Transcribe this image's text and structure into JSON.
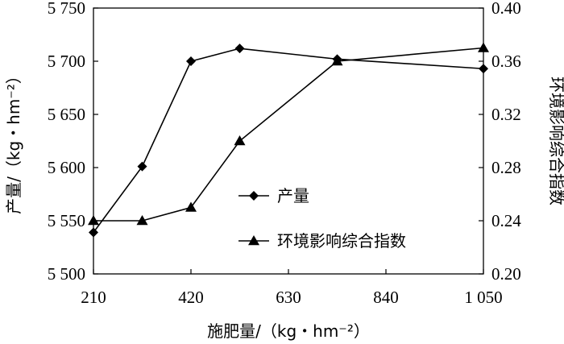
{
  "chart_data": {
    "type": "line",
    "x": [
      210,
      315,
      420,
      525,
      735,
      1050
    ],
    "xlim": [
      210,
      1050
    ],
    "x_ticks": [
      210,
      420,
      630,
      840,
      1050
    ],
    "x_tick_labels": [
      "210",
      "420",
      "630",
      "840",
      "1 050"
    ],
    "xlabel": "施肥量/（kg・hm⁻²）",
    "ylabel": "产量/（kg・hm⁻²）",
    "ylim": [
      5500,
      5750
    ],
    "y_ticks": [
      5500,
      5550,
      5600,
      5650,
      5700,
      5750
    ],
    "y_tick_labels": [
      "5 500",
      "5 550",
      "5 600",
      "5 650",
      "5 700",
      "5 750"
    ],
    "y2label": "环境影响综合指数",
    "y2lim": [
      0.2,
      0.4
    ],
    "y2_ticks": [
      0.2,
      0.24,
      0.28,
      0.32,
      0.36,
      0.4
    ],
    "y2_tick_labels": [
      "0.20",
      "0.24",
      "0.28",
      "0.32",
      "0.36",
      "0.40"
    ],
    "grid": false,
    "legend_position": "center",
    "series": [
      {
        "name": "产量",
        "axis": "left",
        "marker": "diamond",
        "color": "#000000",
        "values": [
          5539,
          5601,
          5700,
          5712,
          5702,
          5693
        ]
      },
      {
        "name": "环境影响综合指数",
        "axis": "right",
        "marker": "triangle",
        "color": "#000000",
        "values": [
          0.24,
          0.24,
          0.25,
          0.3,
          0.36,
          0.37
        ]
      }
    ]
  }
}
